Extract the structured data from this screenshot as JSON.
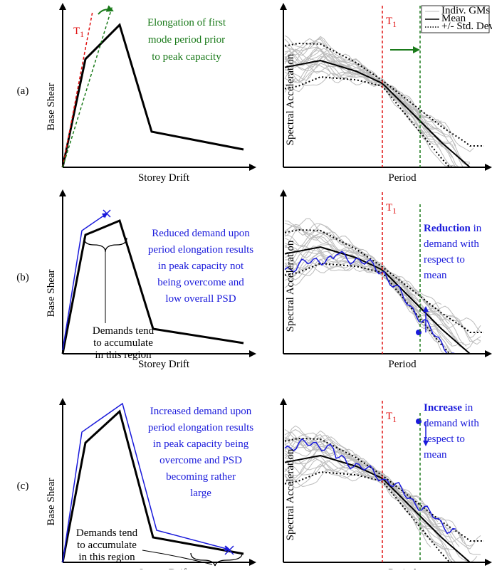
{
  "panels": [
    {
      "label": "(a)",
      "left": {
        "y_label": "Base Shear",
        "x_label": "Storey Drift",
        "period_label": {
          "main": "T",
          "sub": "1"
        },
        "annotation": [
          "Elongation of first",
          "mode period prior",
          "to peak capacity"
        ]
      },
      "right": {
        "y_label": "Spectral Acceleration",
        "x_label": "Period",
        "period_label": {
          "main": "T",
          "sub": "1"
        },
        "legend": [
          "Indiv. GMs",
          "Mean",
          "+/- Std. Dev."
        ]
      }
    },
    {
      "label": "(b)",
      "left": {
        "y_label": "Base Shear",
        "x_label": "Storey Drift",
        "note": [
          "Demands tend",
          "to accumulate",
          "in this region"
        ],
        "annotation": [
          "Reduced demand upon",
          "period elongation results",
          "in peak capacity not",
          "being overcome and",
          "low overall PSD"
        ]
      },
      "right": {
        "y_label": "Spectral Acceleration",
        "x_label": "Period",
        "period_label": {
          "main": "T",
          "sub": "1"
        },
        "annotation_first": {
          "bold": "Reduction",
          "text": "in"
        },
        "annotation": [
          "demand with",
          "respect to",
          "mean"
        ]
      }
    },
    {
      "label": "(c)",
      "left": {
        "y_label": "Base Shear",
        "x_label": "Storey Drift",
        "note": [
          "Demands tend",
          "to accumulate",
          "in this region"
        ],
        "annotation": [
          "Increased demand upon",
          "period elongation results",
          "in peak capacity being",
          "overcome and  PSD",
          "becoming rather",
          "large"
        ]
      },
      "right": {
        "y_label": "Spectral Acceleration",
        "x_label": "Period",
        "period_label": {
          "main": "T",
          "sub": "1"
        },
        "annotation_first": {
          "bold": "Increase",
          "text": "in"
        },
        "annotation": [
          "demand with",
          "respect to",
          "mean"
        ]
      }
    }
  ]
}
